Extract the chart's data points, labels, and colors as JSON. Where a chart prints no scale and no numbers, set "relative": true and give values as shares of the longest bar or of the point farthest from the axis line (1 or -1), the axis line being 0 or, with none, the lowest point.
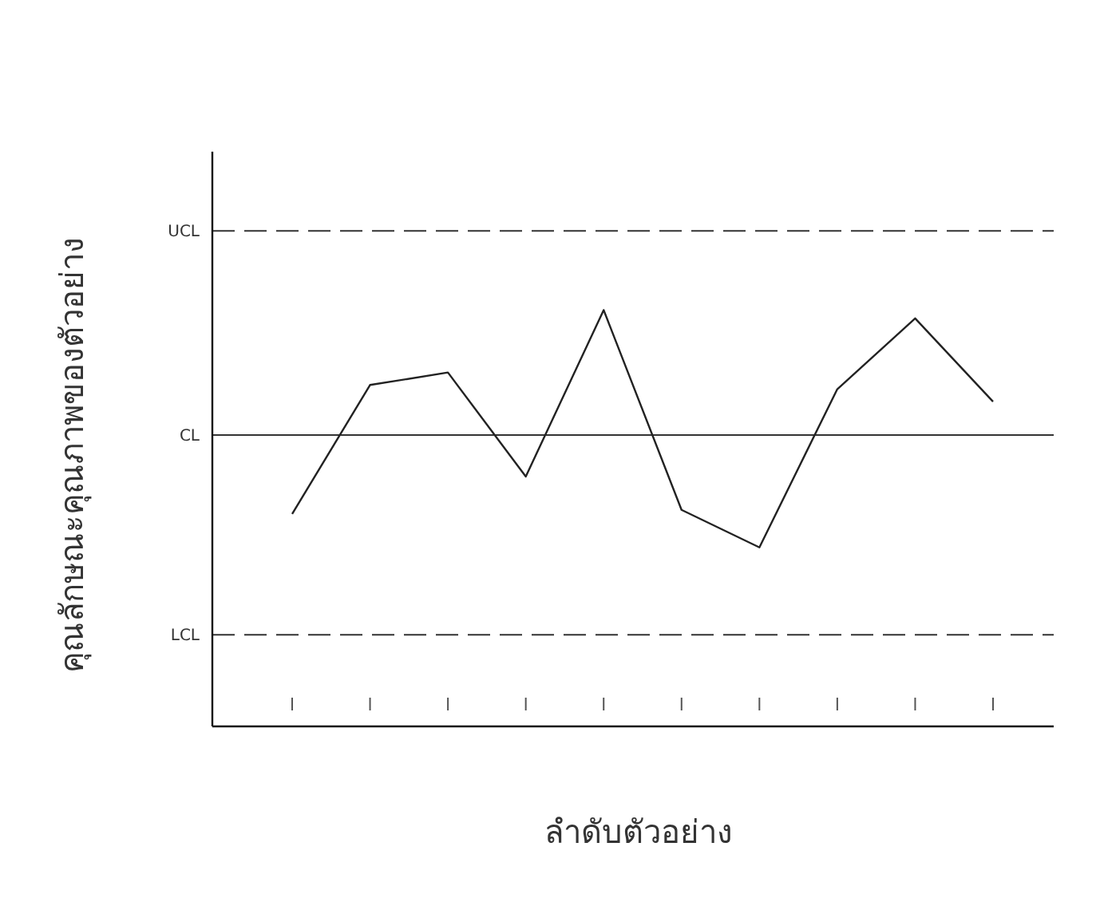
{
  "chart_data": {
    "type": "line",
    "relative": true,
    "xlabel": "ลำดับตัวอย่าง",
    "ylabel": "คุณลักษณะคุณภาพของตัวอย่าง",
    "categories": [
      null,
      null,
      null,
      null,
      null,
      null,
      null,
      null,
      null,
      null
    ],
    "series": [
      {
        "color": "#222222",
        "values": [
          0.51,
          0.82,
          0.85,
          0.6,
          1.0,
          0.52,
          0.43,
          0.81,
          0.98,
          0.78
        ]
      }
    ],
    "ref_lines": [
      {
        "axis": "y",
        "value": 1.19,
        "label": "UCL",
        "color": "#333333",
        "line_style": "dashed"
      },
      {
        "axis": "y",
        "value": 0.7,
        "label": "CL",
        "color": "#333333",
        "line_style": "solid"
      },
      {
        "axis": "y",
        "value": 0.22,
        "label": "LCL",
        "color": "#333333",
        "line_style": "dashed"
      }
    ],
    "marker": "none",
    "line_style": "solid"
  }
}
